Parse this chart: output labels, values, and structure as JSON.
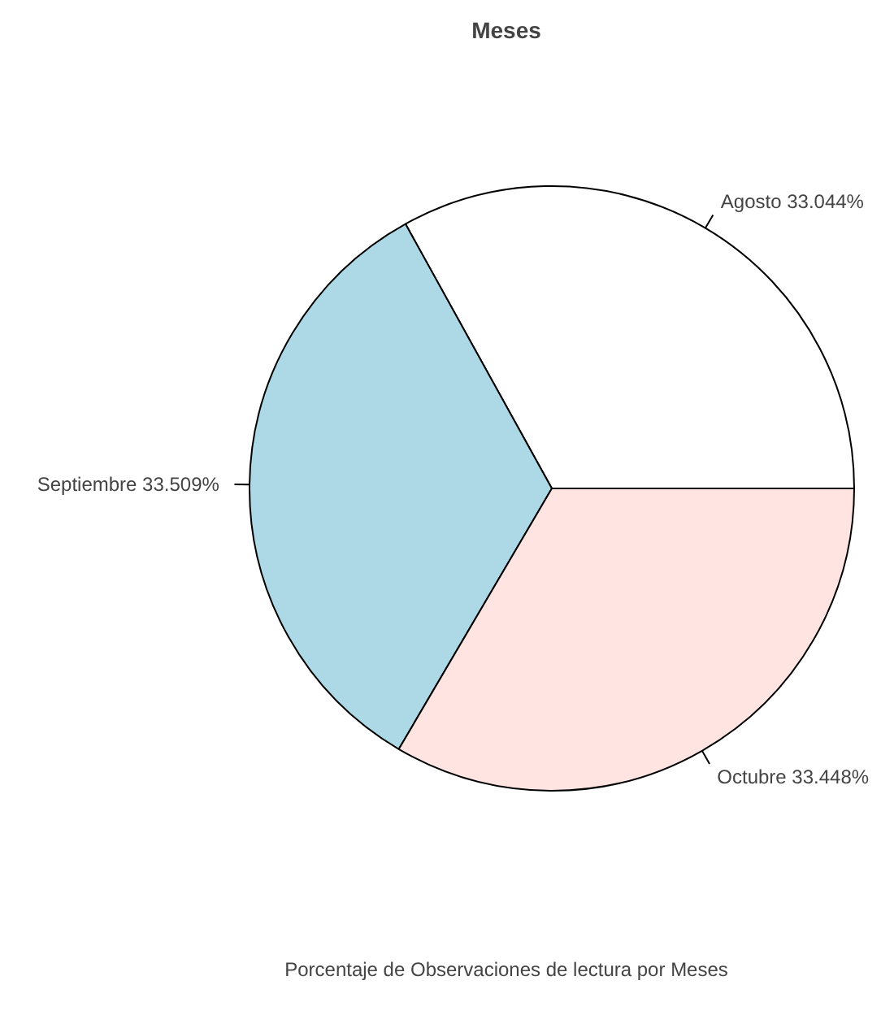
{
  "chart_data": {
    "type": "pie",
    "title": "Meses",
    "xlabel": "Porcentaje de Observaciones de lectura por Meses",
    "categories": [
      "Agosto",
      "Septiembre",
      "Octubre"
    ],
    "values": [
      33.044,
      33.509,
      33.448
    ],
    "value_labels": [
      "33.044%",
      "33.509%",
      "33.448%"
    ],
    "colors": [
      "#ffffff",
      "#add8e6",
      "#ffe4e1"
    ]
  }
}
